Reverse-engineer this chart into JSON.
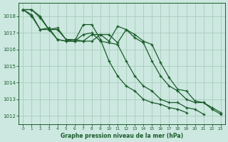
{
  "title": "Graphe pression niveau de la mer (hPa)",
  "bg_color": "#cce8e0",
  "grid_color": "#aaccbb",
  "line_color": "#1a5c2a",
  "xlim": [
    -0.5,
    23.5
  ],
  "ylim": [
    1011.5,
    1018.8
  ],
  "yticks": [
    1012,
    1013,
    1014,
    1015,
    1016,
    1017,
    1018
  ],
  "xticks": [
    0,
    1,
    2,
    3,
    4,
    5,
    6,
    7,
    8,
    9,
    10,
    11,
    12,
    13,
    14,
    15,
    16,
    17,
    18,
    19,
    20,
    21,
    22,
    23
  ],
  "series": [
    [
      1018.4,
      1018.1,
      1017.2,
      1017.2,
      1016.6,
      1016.5,
      1016.5,
      1017.5,
      1017.5,
      1016.6,
      1015.3,
      1014.4,
      1013.8,
      1013.5,
      1013.0,
      1012.8,
      1012.7,
      1012.5,
      1012.4,
      1012.2,
      null,
      null,
      null,
      null
    ],
    [
      1018.4,
      1018.0,
      1017.2,
      1017.3,
      1016.6,
      1016.5,
      1016.5,
      1016.9,
      1017.0,
      1016.5,
      1016.4,
      1016.3,
      1015.3,
      1014.4,
      1013.8,
      1013.5,
      1013.0,
      1012.8,
      1012.8,
      1012.5,
      1012.4,
      1012.1,
      null,
      null
    ],
    [
      1018.4,
      1018.4,
      1018.0,
      1017.2,
      1017.2,
      1016.6,
      1016.5,
      1016.5,
      1016.9,
      1016.9,
      1016.5,
      1017.4,
      1017.2,
      1016.7,
      1016.4,
      1015.3,
      1014.4,
      1013.8,
      1013.5,
      1013.0,
      1012.8,
      1012.8,
      1012.5,
      1012.2
    ],
    [
      1018.4,
      1018.4,
      1017.9,
      1017.2,
      1017.3,
      1016.6,
      1016.6,
      1016.5,
      1016.5,
      1016.9,
      1016.9,
      1016.4,
      1017.2,
      1016.9,
      1016.5,
      1016.3,
      1015.2,
      1014.3,
      1013.6,
      1013.5,
      1012.9,
      1012.8,
      1012.4,
      1012.1
    ]
  ]
}
